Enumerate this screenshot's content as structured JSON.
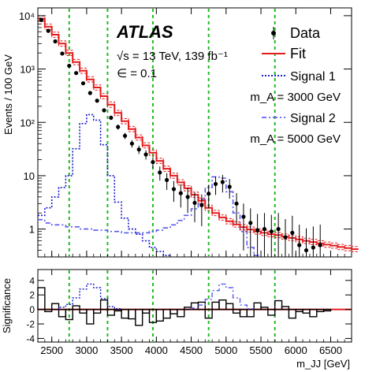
{
  "experiment": "ATLAS",
  "energy_line": "√s = 13 TeV, 139 fb⁻¹",
  "epsilon_line": "∈ = 0.1",
  "chart_data": [
    {
      "type": "line",
      "panel": "main",
      "ylabel": "Events / 100 GeV",
      "xlabel": "",
      "xlim": [
        2300,
        6800
      ],
      "ylim": [
        0.3,
        14000
      ],
      "yscale": "log",
      "yticks": [
        {
          "value": 1,
          "label": "1"
        },
        {
          "value": 10,
          "label": "10"
        },
        {
          "value": 100,
          "label": "10²"
        },
        {
          "value": 1000,
          "label": "10³"
        },
        {
          "value": 10000,
          "label": "10⁴"
        }
      ],
      "vlines": [
        2750,
        3300,
        3950,
        4750,
        5700
      ],
      "legend_position": "top-right",
      "legend": [
        {
          "label": "Data",
          "style": "points",
          "color": "#000000"
        },
        {
          "label": "Fit",
          "style": "line",
          "color": "#e41a1c"
        },
        {
          "label": "Signal 1",
          "style": "dotted",
          "color": "#0000cc"
        },
        {
          "label": "m_A = 3000 GeV",
          "style": "none",
          "color": ""
        },
        {
          "label": "Signal 2",
          "style": "dashdot",
          "color": "#6060ff"
        },
        {
          "label": "m_A = 5000 GeV",
          "style": "none",
          "color": ""
        }
      ],
      "series": [
        {
          "name": "Data",
          "x": [
            2350,
            2450,
            2550,
            2650,
            2750,
            2850,
            2950,
            3050,
            3150,
            3250,
            3350,
            3450,
            3550,
            3650,
            3750,
            3850,
            3950,
            4050,
            4150,
            4250,
            4350,
            4450,
            4550,
            4650,
            4750,
            4850,
            4950,
            5050,
            5150,
            5250,
            5350,
            5450,
            5550,
            5650,
            5750,
            5850,
            5950,
            6050,
            6150,
            6250,
            6350
          ],
          "y": [
            8300,
            5200,
            3300,
            1950,
            1150,
            840,
            540,
            355,
            255,
            168,
            122,
            82,
            56,
            40,
            31,
            25,
            18,
            11.5,
            8.3,
            5.6,
            4.7,
            4.0,
            3.1,
            2.8,
            4.6,
            7.0,
            7.6,
            6.2,
            3.0,
            1.7,
            1.3,
            0.95,
            1.0,
            0.9,
            1.0,
            0.7,
            0.85,
            0.5,
            0.4,
            0.45,
            0.5
          ]
        },
        {
          "name": "Fit",
          "x": [
            2300,
            2400,
            2500,
            2600,
            2700,
            2800,
            2900,
            3000,
            3100,
            3200,
            3300,
            3400,
            3500,
            3600,
            3700,
            3800,
            3900,
            4000,
            4100,
            4200,
            4300,
            4400,
            4500,
            4600,
            4700,
            4800,
            4900,
            5000,
            5100,
            5200,
            5300,
            5400,
            5500,
            5600,
            5700,
            5800,
            5900,
            6000,
            6100,
            6200,
            6300,
            6400,
            6500,
            6600,
            6700,
            6800
          ],
          "y": [
            8800,
            6200,
            4400,
            3000,
            2000,
            1350,
            930,
            640,
            450,
            310,
            215,
            150,
            105,
            75,
            52,
            37,
            27,
            19,
            13.5,
            10,
            7.5,
            5.8,
            4.4,
            3.4,
            2.5,
            2.0,
            1.65,
            1.4,
            1.22,
            1.08,
            0.98,
            0.9,
            0.85,
            0.8,
            0.77,
            0.72,
            0.68,
            0.64,
            0.6,
            0.57,
            0.54,
            0.51,
            0.49,
            0.46,
            0.44,
            0.42
          ]
        },
        {
          "name": "Signal 1",
          "x": [
            2300,
            2400,
            2500,
            2600,
            2700,
            2800,
            2900,
            3000,
            3100,
            3200,
            3300,
            3400,
            3500,
            3600,
            3700,
            3800,
            3900,
            4000,
            4100
          ],
          "y": [
            1.8,
            2.5,
            4,
            6,
            10,
            32,
            95,
            140,
            110,
            38,
            10,
            3.2,
            1.6,
            1.0,
            0.8,
            0.6,
            0.45,
            0.38,
            0.32
          ]
        },
        {
          "name": "Signal 2",
          "x": [
            2300,
            2400,
            2500,
            2600,
            2700,
            2800,
            2900,
            3000,
            3100,
            3200,
            3300,
            3400,
            3500,
            3600,
            3700,
            3800,
            3900,
            4000,
            4100,
            4200,
            4300,
            4400,
            4500,
            4600,
            4700,
            4800,
            4900,
            5000,
            5100,
            5200,
            5300,
            5400
          ],
          "y": [
            1.5,
            1.3,
            1.2,
            1.2,
            1.1,
            1.1,
            1.0,
            1.0,
            0.95,
            0.95,
            0.9,
            0.9,
            0.85,
            0.85,
            0.85,
            0.85,
            0.9,
            0.95,
            1.05,
            1.2,
            1.45,
            1.8,
            2.4,
            3.6,
            6.0,
            9.5,
            9.0,
            5.0,
            2.0,
            0.9,
            0.45,
            0.32
          ]
        }
      ]
    },
    {
      "type": "bar",
      "panel": "ratio",
      "xlabel": "m_JJ [GeV]",
      "ylabel": "Significance",
      "xlim": [
        2300,
        6800
      ],
      "ylim": [
        -4.5,
        5.5
      ],
      "xticks": [
        2500,
        3000,
        3500,
        4000,
        4500,
        5000,
        5500,
        6000,
        6500
      ],
      "yticks": [
        -4,
        -2,
        0,
        2,
        4
      ],
      "series": [
        {
          "name": "Significance",
          "x": [
            2300,
            2400,
            2500,
            2600,
            2700,
            2800,
            2900,
            3000,
            3100,
            3200,
            3300,
            3400,
            3500,
            3600,
            3700,
            3800,
            3900,
            4000,
            4100,
            4200,
            4300,
            4400,
            4500,
            4600,
            4700,
            4800,
            4900,
            5000,
            5100,
            5200,
            5300,
            5400,
            5500,
            5600,
            5700,
            5800,
            5900,
            6000,
            6100,
            6200,
            6300,
            6400
          ],
          "values": [
            3.0,
            -0.3,
            0.8,
            -1.0,
            -1.4,
            0.5,
            -0.5,
            -2.0,
            -0.5,
            1.3,
            -0.8,
            -0.2,
            -1.2,
            -1.3,
            -2.2,
            -0.5,
            -1.8,
            -1.6,
            -1.2,
            -0.6,
            -1.0,
            0.3,
            0.9,
            1.0,
            -1.2,
            1.0,
            1.3,
            0.8,
            -0.5,
            -1.0,
            -1.0,
            0.9,
            0.3,
            -0.8,
            1.2,
            0.4,
            -1.2,
            -0.3,
            -0.5,
            -1.0,
            -0.3,
            -0.2
          ]
        },
        {
          "name": "Signal 1",
          "x": [
            2600,
            2700,
            2800,
            2900,
            3000,
            3100,
            3200,
            3300,
            3400
          ],
          "values": [
            0.3,
            0.7,
            1.6,
            2.8,
            3.5,
            3.0,
            1.5,
            0.4,
            0.1
          ]
        },
        {
          "name": "Signal 2",
          "x": [
            4500,
            4600,
            4700,
            4800,
            4900,
            5000,
            5100,
            5200,
            5300
          ],
          "values": [
            0.2,
            0.6,
            1.4,
            2.6,
            3.5,
            3.0,
            1.6,
            0.6,
            0.1
          ]
        }
      ]
    }
  ]
}
